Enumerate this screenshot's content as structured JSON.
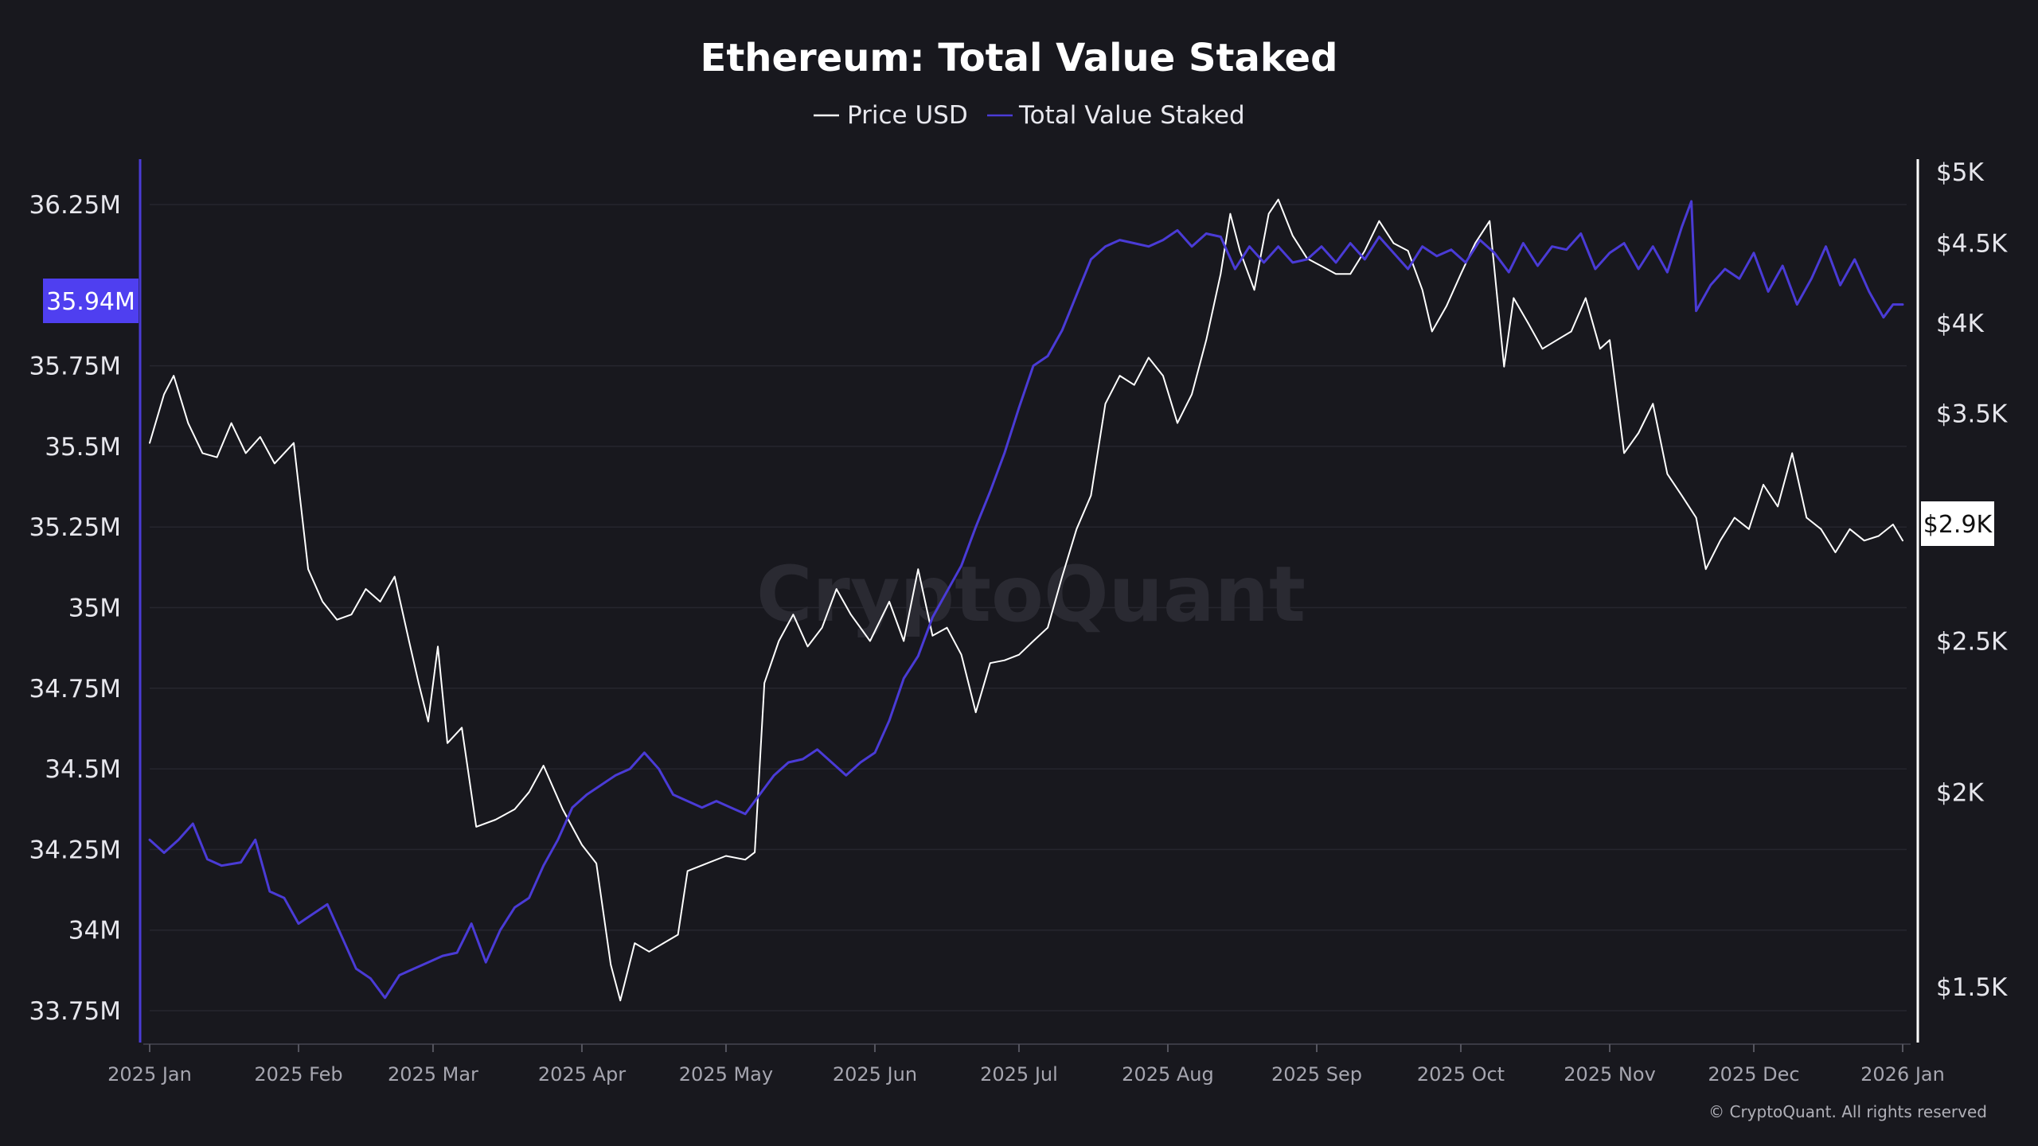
{
  "chart_data": {
    "type": "line",
    "title": "Ethereum: Total Value Staked",
    "legend": {
      "placement": "top-center",
      "items": [
        {
          "label": "Price USD",
          "color": "#ffffff"
        },
        {
          "label": "Total Value Staked",
          "color": "#4a3bd6"
        }
      ]
    },
    "grid": true,
    "x_axis": {
      "type": "date",
      "range": [
        "2025-01-01",
        "2026-01-01"
      ],
      "tick_labels": [
        "2025 Jan",
        "2025 Feb",
        "2025 Mar",
        "2025 Apr",
        "2025 May",
        "2025 Jun",
        "2025 Jul",
        "2025 Aug",
        "2025 Sep",
        "2025 Oct",
        "2025 Nov",
        "2025 Dec",
        "2026 Jan"
      ],
      "tick_dates": [
        "2025-01-01",
        "2025-02-01",
        "2025-03-01",
        "2025-04-01",
        "2025-05-01",
        "2025-06-01",
        "2025-07-01",
        "2025-08-01",
        "2025-09-01",
        "2025-10-01",
        "2025-11-01",
        "2025-12-01",
        "2026-01-01"
      ]
    },
    "y_left": {
      "series": "Total Value Staked",
      "range": [
        33.7,
        36.5
      ],
      "ticks": [
        33.75,
        34,
        34.25,
        34.5,
        34.75,
        35,
        35.25,
        35.5,
        35.75,
        36.25
      ],
      "tick_labels": [
        "33.75M",
        "34M",
        "34.25M",
        "34.5M",
        "34.75M",
        "35M",
        "35.25M",
        "35.5M",
        "35.75M",
        "36.25M"
      ],
      "current_value": 35.94,
      "current_label": "35.94M"
    },
    "y_right": {
      "series": "Price USD",
      "scale": "log",
      "range": [
        1350,
        5000
      ],
      "ticks": [
        1500,
        2000,
        2500,
        3500,
        4000,
        4500,
        5000
      ],
      "tick_labels": [
        "$1.5K",
        "$2K",
        "$2.5K",
        "$3.5K",
        "$4K",
        "$4.5K",
        "$5K"
      ],
      "current_value": 2900,
      "current_label": "$2.9K"
    },
    "series": [
      {
        "name": "Price USD",
        "axis": "right",
        "color": "#ffffff",
        "points": [
          [
            "2025-01-01",
            3350
          ],
          [
            "2025-01-04",
            3600
          ],
          [
            "2025-01-06",
            3700
          ],
          [
            "2025-01-09",
            3450
          ],
          [
            "2025-01-12",
            3300
          ],
          [
            "2025-01-15",
            3280
          ],
          [
            "2025-01-18",
            3450
          ],
          [
            "2025-01-21",
            3300
          ],
          [
            "2025-01-24",
            3380
          ],
          [
            "2025-01-27",
            3250
          ],
          [
            "2025-01-31",
            3350
          ],
          [
            "2025-02-03",
            2780
          ],
          [
            "2025-02-06",
            2650
          ],
          [
            "2025-02-09",
            2580
          ],
          [
            "2025-02-12",
            2600
          ],
          [
            "2025-02-15",
            2700
          ],
          [
            "2025-02-18",
            2650
          ],
          [
            "2025-02-21",
            2750
          ],
          [
            "2025-02-24",
            2500
          ],
          [
            "2025-02-26",
            2350
          ],
          [
            "2025-02-28",
            2220
          ],
          [
            "2025-03-02",
            2480
          ],
          [
            "2025-03-04",
            2150
          ],
          [
            "2025-03-07",
            2200
          ],
          [
            "2025-03-10",
            1900
          ],
          [
            "2025-03-14",
            1920
          ],
          [
            "2025-03-18",
            1950
          ],
          [
            "2025-03-21",
            2000
          ],
          [
            "2025-03-24",
            2080
          ],
          [
            "2025-03-28",
            1950
          ],
          [
            "2025-04-01",
            1850
          ],
          [
            "2025-04-04",
            1800
          ],
          [
            "2025-04-07",
            1550
          ],
          [
            "2025-04-09",
            1470
          ],
          [
            "2025-04-12",
            1600
          ],
          [
            "2025-04-15",
            1580
          ],
          [
            "2025-04-18",
            1600
          ],
          [
            "2025-04-21",
            1620
          ],
          [
            "2025-04-23",
            1780
          ],
          [
            "2025-04-27",
            1800
          ],
          [
            "2025-05-01",
            1820
          ],
          [
            "2025-05-05",
            1810
          ],
          [
            "2025-05-07",
            1830
          ],
          [
            "2025-05-09",
            2350
          ],
          [
            "2025-05-12",
            2500
          ],
          [
            "2025-05-15",
            2600
          ],
          [
            "2025-05-18",
            2480
          ],
          [
            "2025-05-21",
            2550
          ],
          [
            "2025-05-24",
            2700
          ],
          [
            "2025-05-27",
            2600
          ],
          [
            "2025-05-31",
            2500
          ],
          [
            "2025-06-04",
            2650
          ],
          [
            "2025-06-07",
            2500
          ],
          [
            "2025-06-10",
            2780
          ],
          [
            "2025-06-13",
            2520
          ],
          [
            "2025-06-16",
            2550
          ],
          [
            "2025-06-19",
            2450
          ],
          [
            "2025-06-22",
            2250
          ],
          [
            "2025-06-25",
            2420
          ],
          [
            "2025-06-28",
            2430
          ],
          [
            "2025-07-01",
            2450
          ],
          [
            "2025-07-04",
            2500
          ],
          [
            "2025-07-07",
            2550
          ],
          [
            "2025-07-10",
            2750
          ],
          [
            "2025-07-13",
            2950
          ],
          [
            "2025-07-16",
            3100
          ],
          [
            "2025-07-19",
            3550
          ],
          [
            "2025-07-22",
            3700
          ],
          [
            "2025-07-25",
            3650
          ],
          [
            "2025-07-28",
            3800
          ],
          [
            "2025-07-31",
            3700
          ],
          [
            "2025-08-03",
            3450
          ],
          [
            "2025-08-06",
            3600
          ],
          [
            "2025-08-09",
            3900
          ],
          [
            "2025-08-12",
            4300
          ],
          [
            "2025-08-14",
            4700
          ],
          [
            "2025-08-16",
            4450
          ],
          [
            "2025-08-19",
            4200
          ],
          [
            "2025-08-22",
            4700
          ],
          [
            "2025-08-24",
            4800
          ],
          [
            "2025-08-27",
            4550
          ],
          [
            "2025-08-30",
            4400
          ],
          [
            "2025-09-02",
            4350
          ],
          [
            "2025-09-05",
            4300
          ],
          [
            "2025-09-08",
            4300
          ],
          [
            "2025-09-11",
            4450
          ],
          [
            "2025-09-14",
            4650
          ],
          [
            "2025-09-17",
            4500
          ],
          [
            "2025-09-20",
            4450
          ],
          [
            "2025-09-23",
            4200
          ],
          [
            "2025-09-25",
            3950
          ],
          [
            "2025-09-28",
            4100
          ],
          [
            "2025-10-01",
            4300
          ],
          [
            "2025-10-04",
            4500
          ],
          [
            "2025-10-07",
            4650
          ],
          [
            "2025-10-10",
            3750
          ],
          [
            "2025-10-12",
            4150
          ],
          [
            "2025-10-15",
            4000
          ],
          [
            "2025-10-18",
            3850
          ],
          [
            "2025-10-21",
            3900
          ],
          [
            "2025-10-24",
            3950
          ],
          [
            "2025-10-27",
            4150
          ],
          [
            "2025-10-30",
            3850
          ],
          [
            "2025-11-01",
            3900
          ],
          [
            "2025-11-04",
            3300
          ],
          [
            "2025-11-07",
            3400
          ],
          [
            "2025-11-10",
            3550
          ],
          [
            "2025-11-13",
            3200
          ],
          [
            "2025-11-16",
            3100
          ],
          [
            "2025-11-19",
            3000
          ],
          [
            "2025-11-21",
            2780
          ],
          [
            "2025-11-24",
            2900
          ],
          [
            "2025-11-27",
            3000
          ],
          [
            "2025-11-30",
            2950
          ],
          [
            "2025-12-03",
            3150
          ],
          [
            "2025-12-06",
            3050
          ],
          [
            "2025-12-09",
            3300
          ],
          [
            "2025-12-12",
            3000
          ],
          [
            "2025-12-15",
            2950
          ],
          [
            "2025-12-18",
            2850
          ],
          [
            "2025-12-21",
            2950
          ],
          [
            "2025-12-24",
            2900
          ],
          [
            "2025-12-27",
            2920
          ],
          [
            "2025-12-30",
            2970
          ],
          [
            "2026-01-01",
            2900
          ]
        ]
      },
      {
        "name": "Total Value Staked",
        "axis": "left",
        "color": "#4a3bd6",
        "points": [
          [
            "2025-01-01",
            34.28
          ],
          [
            "2025-01-04",
            34.24
          ],
          [
            "2025-01-07",
            34.28
          ],
          [
            "2025-01-10",
            34.33
          ],
          [
            "2025-01-13",
            34.22
          ],
          [
            "2025-01-16",
            34.2
          ],
          [
            "2025-01-20",
            34.21
          ],
          [
            "2025-01-23",
            34.28
          ],
          [
            "2025-01-26",
            34.12
          ],
          [
            "2025-01-29",
            34.1
          ],
          [
            "2025-02-01",
            34.02
          ],
          [
            "2025-02-04",
            34.05
          ],
          [
            "2025-02-07",
            34.08
          ],
          [
            "2025-02-10",
            33.98
          ],
          [
            "2025-02-13",
            33.88
          ],
          [
            "2025-02-16",
            33.85
          ],
          [
            "2025-02-19",
            33.79
          ],
          [
            "2025-02-22",
            33.86
          ],
          [
            "2025-02-25",
            33.88
          ],
          [
            "2025-02-28",
            33.9
          ],
          [
            "2025-03-03",
            33.92
          ],
          [
            "2025-03-06",
            33.93
          ],
          [
            "2025-03-09",
            34.02
          ],
          [
            "2025-03-12",
            33.9
          ],
          [
            "2025-03-15",
            34.0
          ],
          [
            "2025-03-18",
            34.07
          ],
          [
            "2025-03-21",
            34.1
          ],
          [
            "2025-03-24",
            34.2
          ],
          [
            "2025-03-27",
            34.28
          ],
          [
            "2025-03-30",
            34.38
          ],
          [
            "2025-04-02",
            34.42
          ],
          [
            "2025-04-05",
            34.45
          ],
          [
            "2025-04-08",
            34.48
          ],
          [
            "2025-04-11",
            34.5
          ],
          [
            "2025-04-14",
            34.55
          ],
          [
            "2025-04-17",
            34.5
          ],
          [
            "2025-04-20",
            34.42
          ],
          [
            "2025-04-23",
            34.4
          ],
          [
            "2025-04-26",
            34.38
          ],
          [
            "2025-04-29",
            34.4
          ],
          [
            "2025-05-02",
            34.38
          ],
          [
            "2025-05-05",
            34.36
          ],
          [
            "2025-05-08",
            34.42
          ],
          [
            "2025-05-11",
            34.48
          ],
          [
            "2025-05-14",
            34.52
          ],
          [
            "2025-05-17",
            34.53
          ],
          [
            "2025-05-20",
            34.56
          ],
          [
            "2025-05-23",
            34.52
          ],
          [
            "2025-05-26",
            34.48
          ],
          [
            "2025-05-29",
            34.52
          ],
          [
            "2025-06-01",
            34.55
          ],
          [
            "2025-06-04",
            34.65
          ],
          [
            "2025-06-07",
            34.78
          ],
          [
            "2025-06-10",
            34.85
          ],
          [
            "2025-06-13",
            34.97
          ],
          [
            "2025-06-16",
            35.05
          ],
          [
            "2025-06-19",
            35.13
          ],
          [
            "2025-06-22",
            35.25
          ],
          [
            "2025-06-25",
            35.36
          ],
          [
            "2025-06-28",
            35.48
          ],
          [
            "2025-07-01",
            35.62
          ],
          [
            "2025-07-04",
            35.75
          ],
          [
            "2025-07-07",
            35.78
          ],
          [
            "2025-07-10",
            35.86
          ],
          [
            "2025-07-13",
            35.97
          ],
          [
            "2025-07-16",
            36.08
          ],
          [
            "2025-07-19",
            36.12
          ],
          [
            "2025-07-22",
            36.14
          ],
          [
            "2025-07-25",
            36.13
          ],
          [
            "2025-07-28",
            36.12
          ],
          [
            "2025-07-31",
            36.14
          ],
          [
            "2025-08-03",
            36.17
          ],
          [
            "2025-08-06",
            36.12
          ],
          [
            "2025-08-09",
            36.16
          ],
          [
            "2025-08-12",
            36.15
          ],
          [
            "2025-08-15",
            36.05
          ],
          [
            "2025-08-18",
            36.12
          ],
          [
            "2025-08-21",
            36.07
          ],
          [
            "2025-08-24",
            36.12
          ],
          [
            "2025-08-27",
            36.07
          ],
          [
            "2025-08-30",
            36.08
          ],
          [
            "2025-09-02",
            36.12
          ],
          [
            "2025-09-05",
            36.07
          ],
          [
            "2025-09-08",
            36.13
          ],
          [
            "2025-09-11",
            36.08
          ],
          [
            "2025-09-14",
            36.15
          ],
          [
            "2025-09-17",
            36.1
          ],
          [
            "2025-09-20",
            36.05
          ],
          [
            "2025-09-23",
            36.12
          ],
          [
            "2025-09-26",
            36.09
          ],
          [
            "2025-09-29",
            36.11
          ],
          [
            "2025-10-02",
            36.07
          ],
          [
            "2025-10-05",
            36.14
          ],
          [
            "2025-10-08",
            36.1
          ],
          [
            "2025-10-11",
            36.04
          ],
          [
            "2025-10-14",
            36.13
          ],
          [
            "2025-10-17",
            36.06
          ],
          [
            "2025-10-20",
            36.12
          ],
          [
            "2025-10-23",
            36.11
          ],
          [
            "2025-10-26",
            36.16
          ],
          [
            "2025-10-29",
            36.05
          ],
          [
            "2025-11-01",
            36.1
          ],
          [
            "2025-11-04",
            36.13
          ],
          [
            "2025-11-07",
            36.05
          ],
          [
            "2025-11-10",
            36.12
          ],
          [
            "2025-11-13",
            36.04
          ],
          [
            "2025-11-16",
            36.18
          ],
          [
            "2025-11-18",
            36.26
          ],
          [
            "2025-11-19",
            35.92
          ],
          [
            "2025-11-22",
            36.0
          ],
          [
            "2025-11-25",
            36.05
          ],
          [
            "2025-11-28",
            36.02
          ],
          [
            "2025-12-01",
            36.1
          ],
          [
            "2025-12-04",
            35.98
          ],
          [
            "2025-12-07",
            36.06
          ],
          [
            "2025-12-10",
            35.94
          ],
          [
            "2025-12-13",
            36.02
          ],
          [
            "2025-12-16",
            36.12
          ],
          [
            "2025-12-19",
            36.0
          ],
          [
            "2025-12-22",
            36.08
          ],
          [
            "2025-12-25",
            35.98
          ],
          [
            "2025-12-28",
            35.9
          ],
          [
            "2025-12-30",
            35.94
          ],
          [
            "2026-01-01",
            35.94
          ]
        ]
      }
    ],
    "watermark": "CryptoQuant",
    "copyright": "© CryptoQuant. All rights reserved"
  }
}
